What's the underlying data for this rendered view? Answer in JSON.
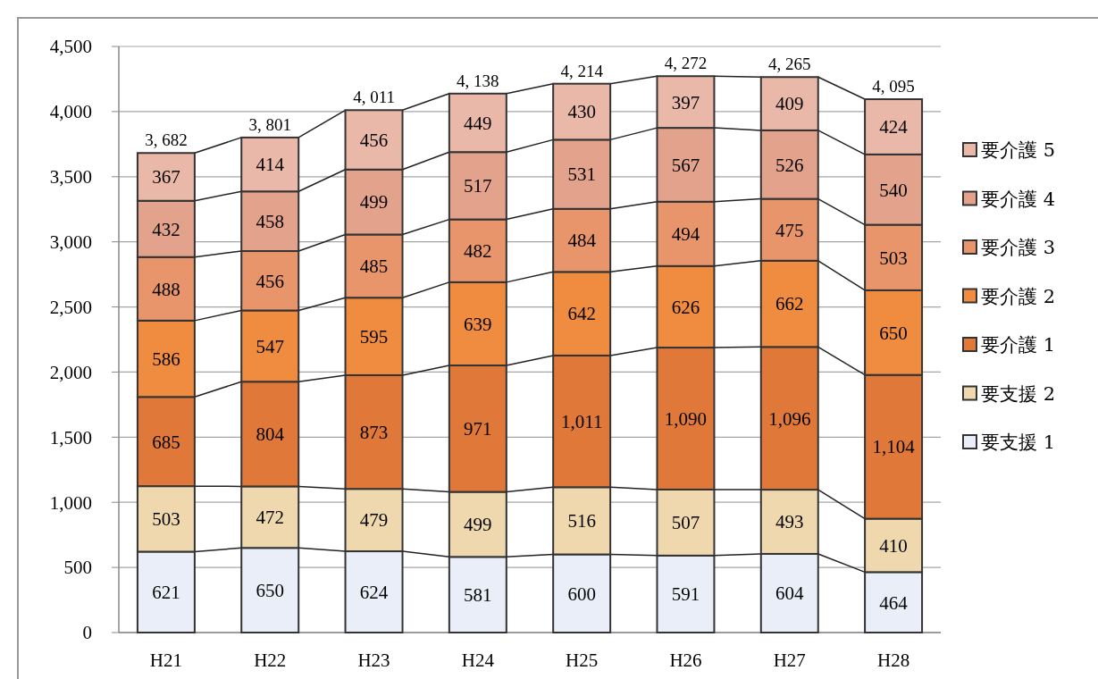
{
  "chart_data": {
    "type": "bar",
    "stacked": true,
    "categories": [
      "H21",
      "H22",
      "H23",
      "H24",
      "H25",
      "H26",
      "H27",
      "H28"
    ],
    "series": [
      {
        "name": "要支援 1",
        "color": "#e9eef8",
        "values": [
          621,
          650,
          624,
          581,
          600,
          591,
          604,
          464
        ],
        "value_labels": [
          "621",
          "650",
          "624",
          "581",
          "600",
          "591",
          "604",
          "464"
        ]
      },
      {
        "name": "要支援 2",
        "color": "#efd8ae",
        "values": [
          503,
          472,
          479,
          499,
          516,
          507,
          493,
          410
        ],
        "value_labels": [
          "503",
          "472",
          "479",
          "499",
          "516",
          "507",
          "493",
          "410"
        ]
      },
      {
        "name": "要介護 1",
        "color": "#e0783a",
        "values": [
          685,
          804,
          873,
          971,
          1011,
          1090,
          1096,
          1104
        ],
        "value_labels": [
          "685",
          "804",
          "873",
          "971",
          "1,011",
          "1,090",
          "1,096",
          "1,104"
        ]
      },
      {
        "name": "要介護 2",
        "color": "#f08c40",
        "values": [
          586,
          547,
          595,
          639,
          642,
          626,
          662,
          650
        ],
        "value_labels": [
          "586",
          "547",
          "595",
          "639",
          "642",
          "626",
          "662",
          "650"
        ]
      },
      {
        "name": "要介護 3",
        "color": "#e8956c",
        "values": [
          488,
          456,
          485,
          482,
          484,
          494,
          475,
          503
        ],
        "value_labels": [
          "488",
          "456",
          "485",
          "482",
          "484",
          "494",
          "475",
          "503"
        ]
      },
      {
        "name": "要介護 4",
        "color": "#e2a28c",
        "values": [
          432,
          458,
          499,
          517,
          531,
          567,
          526,
          540
        ],
        "value_labels": [
          "432",
          "458",
          "499",
          "517",
          "531",
          "567",
          "526",
          "540"
        ]
      },
      {
        "name": "要介護 5",
        "color": "#eab8a8",
        "values": [
          367,
          414,
          456,
          449,
          430,
          397,
          409,
          424
        ],
        "value_labels": [
          "367",
          "414",
          "456",
          "449",
          "430",
          "397",
          "409",
          "424"
        ]
      }
    ],
    "totals": [
      "3, 682",
      "3, 801",
      "4, 011",
      "4, 138",
      "4, 214",
      "4, 272",
      "4, 265",
      "4, 095"
    ],
    "ylim": [
      0,
      4500
    ],
    "yticks": [
      0,
      500,
      {
        "value": 1000,
        "label": "1,000"
      },
      {
        "value": 1500,
        "label": "1,500"
      },
      {
        "value": 2000,
        "label": "2,000"
      },
      {
        "value": 2500,
        "label": "2,500"
      },
      {
        "value": 3000,
        "label": "3,000"
      },
      {
        "value": 3500,
        "label": "3,500"
      },
      {
        "value": 4000,
        "label": "4,000"
      },
      {
        "value": 4500,
        "label": "4,500"
      }
    ],
    "grid": "y",
    "legend": "right"
  }
}
